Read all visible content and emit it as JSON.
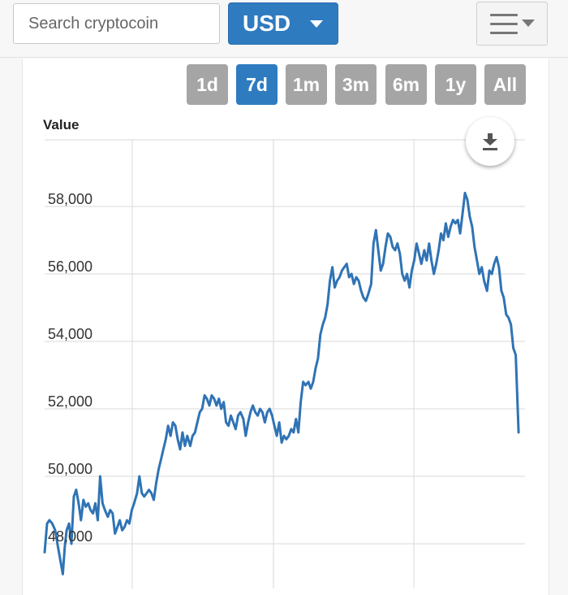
{
  "search": {
    "placeholder": "Search cryptocoin"
  },
  "currency": {
    "selected": "USD"
  },
  "menu": {
    "icon": "hamburger-menu-icon"
  },
  "range_buttons": [
    {
      "label": "1d",
      "active": false
    },
    {
      "label": "7d",
      "active": true
    },
    {
      "label": "1m",
      "active": false
    },
    {
      "label": "3m",
      "active": false
    },
    {
      "label": "6m",
      "active": false
    },
    {
      "label": "1y",
      "active": false
    },
    {
      "label": "All",
      "active": false
    }
  ],
  "download": {
    "icon": "download-icon"
  },
  "colors": {
    "accent": "#2f7bc0",
    "line": "#2f73b5",
    "inactive_button": "#a5a5a5",
    "grid": "#d9d9d9"
  },
  "chart_data": {
    "type": "line",
    "title": "",
    "xlabel": "",
    "ylabel": "Value",
    "ylim": [
      47000,
      60000
    ],
    "xlim": [
      0,
      100
    ],
    "yticks": [
      {
        "value": 48000,
        "label": "48,000"
      },
      {
        "value": 50000,
        "label": "50,000"
      },
      {
        "value": 52000,
        "label": "52,000"
      },
      {
        "value": 54000,
        "label": "54,000"
      },
      {
        "value": 56000,
        "label": "56,000"
      },
      {
        "value": 58000,
        "label": "58,000"
      }
    ],
    "grid": true,
    "series": [
      {
        "values": [
          [
            0.0,
            47750
          ],
          [
            0.5,
            48600
          ],
          [
            1.0,
            48700
          ],
          [
            1.6,
            48600
          ],
          [
            2.2,
            48400
          ],
          [
            2.8,
            47900
          ],
          [
            3.3,
            47500
          ],
          [
            3.8,
            47100
          ],
          [
            4.2,
            47900
          ],
          [
            4.6,
            48400
          ],
          [
            5.1,
            48600
          ],
          [
            5.6,
            48000
          ],
          [
            6.1,
            49400
          ],
          [
            6.6,
            49600
          ],
          [
            7.1,
            49200
          ],
          [
            7.6,
            48700
          ],
          [
            8.1,
            49300
          ],
          [
            8.6,
            49100
          ],
          [
            9.1,
            49200
          ],
          [
            9.6,
            49000
          ],
          [
            10.1,
            48900
          ],
          [
            10.6,
            49200
          ],
          [
            11.1,
            48700
          ],
          [
            11.6,
            50000
          ],
          [
            12.1,
            49200
          ],
          [
            12.6,
            49000
          ],
          [
            13.2,
            48800
          ],
          [
            13.7,
            49000
          ],
          [
            14.2,
            48900
          ],
          [
            14.7,
            48300
          ],
          [
            15.2,
            48500
          ],
          [
            15.7,
            48700
          ],
          [
            16.2,
            48400
          ],
          [
            16.7,
            48500
          ],
          [
            17.2,
            48700
          ],
          [
            17.7,
            48600
          ],
          [
            18.2,
            49000
          ],
          [
            18.7,
            49200
          ],
          [
            19.3,
            49500
          ],
          [
            19.8,
            50000
          ],
          [
            20.3,
            49500
          ],
          [
            20.8,
            49400
          ],
          [
            21.3,
            49500
          ],
          [
            21.8,
            49600
          ],
          [
            22.3,
            49500
          ],
          [
            22.8,
            49300
          ],
          [
            23.3,
            49800
          ],
          [
            23.8,
            50200
          ],
          [
            24.3,
            50500
          ],
          [
            24.8,
            50800
          ],
          [
            25.3,
            51100
          ],
          [
            25.8,
            51500
          ],
          [
            26.3,
            51200
          ],
          [
            26.8,
            51600
          ],
          [
            27.3,
            51500
          ],
          [
            27.8,
            51100
          ],
          [
            28.3,
            50800
          ],
          [
            28.8,
            51300
          ],
          [
            29.3,
            50900
          ],
          [
            29.8,
            51200
          ],
          [
            30.4,
            50900
          ],
          [
            30.9,
            51200
          ],
          [
            31.4,
            51300
          ],
          [
            31.9,
            51600
          ],
          [
            32.4,
            51900
          ],
          [
            32.9,
            52000
          ],
          [
            33.4,
            52400
          ],
          [
            33.9,
            52300
          ],
          [
            34.4,
            52100
          ],
          [
            34.9,
            52400
          ],
          [
            35.4,
            52300
          ],
          [
            35.9,
            52100
          ],
          [
            36.4,
            52300
          ],
          [
            36.9,
            52000
          ],
          [
            37.4,
            52200
          ],
          [
            37.9,
            51600
          ],
          [
            38.4,
            51500
          ],
          [
            38.9,
            51800
          ],
          [
            39.4,
            51600
          ],
          [
            39.9,
            51400
          ],
          [
            40.4,
            51800
          ],
          [
            40.9,
            51900
          ],
          [
            41.5,
            51700
          ],
          [
            42.0,
            51200
          ],
          [
            42.5,
            51600
          ],
          [
            43.0,
            51900
          ],
          [
            43.5,
            52100
          ],
          [
            44.0,
            51900
          ],
          [
            44.5,
            51800
          ],
          [
            45.0,
            52000
          ],
          [
            45.5,
            51900
          ],
          [
            46.0,
            51600
          ],
          [
            46.5,
            51900
          ],
          [
            47.0,
            52000
          ],
          [
            47.5,
            51800
          ],
          [
            48.0,
            51500
          ],
          [
            48.5,
            51200
          ],
          [
            49.0,
            51600
          ],
          [
            49.5,
            51000
          ],
          [
            50.0,
            51200
          ],
          [
            50.5,
            51100
          ],
          [
            51.0,
            51200
          ],
          [
            51.5,
            51400
          ],
          [
            52.0,
            51300
          ],
          [
            52.5,
            51700
          ],
          [
            53.0,
            51300
          ],
          [
            53.5,
            52200
          ],
          [
            54.0,
            52800
          ],
          [
            54.5,
            52700
          ],
          [
            55.1,
            52800
          ],
          [
            55.6,
            52600
          ],
          [
            56.1,
            52800
          ],
          [
            56.6,
            53200
          ],
          [
            57.1,
            53500
          ],
          [
            57.6,
            54200
          ],
          [
            58.1,
            54500
          ],
          [
            58.6,
            54700
          ],
          [
            59.1,
            55100
          ],
          [
            59.6,
            55800
          ],
          [
            60.1,
            56200
          ],
          [
            60.6,
            55600
          ],
          [
            61.1,
            55800
          ],
          [
            61.6,
            55900
          ],
          [
            62.1,
            56100
          ],
          [
            62.6,
            56200
          ],
          [
            63.1,
            56300
          ],
          [
            63.6,
            55900
          ],
          [
            64.1,
            56000
          ],
          [
            64.6,
            55700
          ],
          [
            65.1,
            55900
          ],
          [
            65.6,
            55800
          ],
          [
            66.1,
            55500
          ],
          [
            66.6,
            55300
          ],
          [
            67.1,
            55200
          ],
          [
            67.6,
            55400
          ],
          [
            68.2,
            55700
          ],
          [
            68.7,
            56900
          ],
          [
            69.2,
            57300
          ],
          [
            69.7,
            56700
          ],
          [
            70.2,
            56100
          ],
          [
            70.7,
            56300
          ],
          [
            71.2,
            56800
          ],
          [
            71.7,
            57200
          ],
          [
            72.2,
            57100
          ],
          [
            72.7,
            56800
          ],
          [
            73.2,
            56700
          ],
          [
            73.7,
            56900
          ],
          [
            74.2,
            56600
          ],
          [
            74.7,
            56000
          ],
          [
            75.2,
            55800
          ],
          [
            75.7,
            56000
          ],
          [
            76.2,
            55600
          ],
          [
            76.7,
            56100
          ],
          [
            77.2,
            56400
          ],
          [
            77.7,
            56900
          ],
          [
            78.2,
            56600
          ],
          [
            78.7,
            56300
          ],
          [
            79.3,
            56700
          ],
          [
            79.8,
            56400
          ],
          [
            80.3,
            56900
          ],
          [
            80.8,
            56400
          ],
          [
            81.3,
            56000
          ],
          [
            81.8,
            56300
          ],
          [
            82.3,
            56700
          ],
          [
            82.8,
            57200
          ],
          [
            83.3,
            57000
          ],
          [
            83.8,
            57500
          ],
          [
            84.3,
            57100
          ],
          [
            84.8,
            57400
          ],
          [
            85.3,
            57600
          ],
          [
            85.8,
            57500
          ],
          [
            86.3,
            57600
          ],
          [
            86.8,
            57200
          ],
          [
            87.3,
            57800
          ],
          [
            87.8,
            58400
          ],
          [
            88.3,
            58200
          ],
          [
            88.8,
            57700
          ],
          [
            89.3,
            57400
          ],
          [
            89.8,
            56800
          ],
          [
            90.3,
            56400
          ],
          [
            90.8,
            56000
          ],
          [
            91.3,
            56200
          ],
          [
            91.8,
            55800
          ],
          [
            92.4,
            55500
          ],
          [
            92.9,
            56100
          ],
          [
            93.4,
            56000
          ],
          [
            93.9,
            56300
          ],
          [
            94.4,
            56500
          ],
          [
            94.9,
            56200
          ],
          [
            95.4,
            55500
          ],
          [
            95.9,
            55300
          ],
          [
            96.4,
            54800
          ],
          [
            96.9,
            54700
          ],
          [
            97.4,
            54500
          ],
          [
            97.9,
            53800
          ],
          [
            98.4,
            53600
          ],
          [
            99.0,
            51300
          ]
        ]
      }
    ]
  }
}
